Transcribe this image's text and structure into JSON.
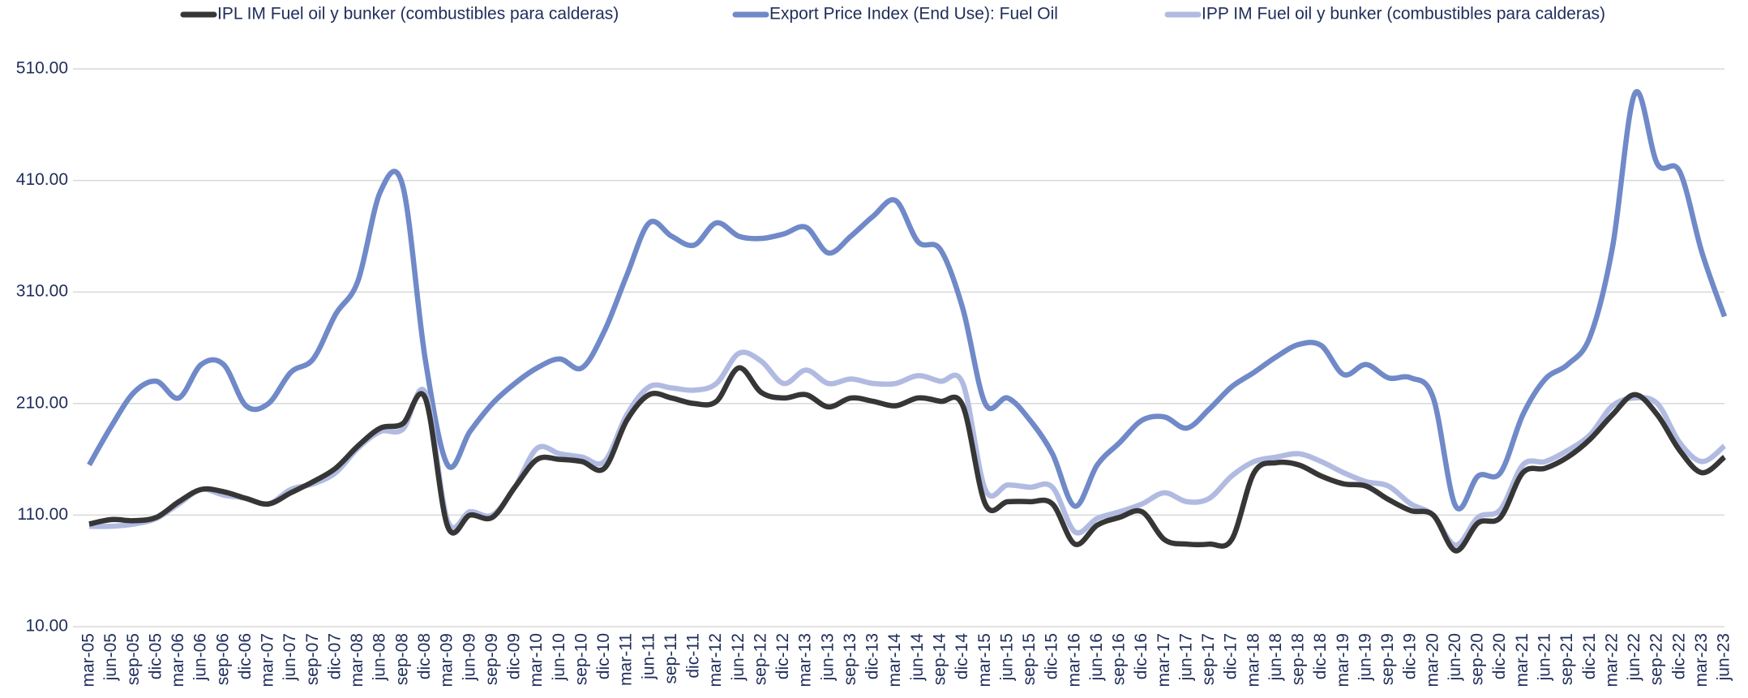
{
  "chart_data": {
    "type": "line",
    "categories": [
      "mar-05",
      "jun-05",
      "sep-05",
      "dic-05",
      "mar-06",
      "jun-06",
      "sep-06",
      "dic-06",
      "mar-07",
      "jun-07",
      "sep-07",
      "dic-07",
      "mar-08",
      "jun-08",
      "sep-08",
      "dic-08",
      "mar-09",
      "jun-09",
      "sep-09",
      "dic-09",
      "mar-10",
      "jun-10",
      "sep-10",
      "dic-10",
      "mar-11",
      "jun-11",
      "sep-11",
      "dic-11",
      "mar-12",
      "jun-12",
      "sep-12",
      "dic-12",
      "mar-13",
      "jun-13",
      "sep-13",
      "dic-13",
      "mar-14",
      "jun-14",
      "sep-14",
      "dic-14",
      "mar-15",
      "jun-15",
      "sep-15",
      "dic-15",
      "mar-16",
      "jun-16",
      "sep-16",
      "dic-16",
      "mar-17",
      "jun-17",
      "sep-17",
      "dic-17",
      "mar-18",
      "jun-18",
      "sep-18",
      "dic-18",
      "mar-19",
      "jun-19",
      "sep-19",
      "dic-19",
      "mar-20",
      "jun-20",
      "sep-20",
      "dic-20",
      "mar-21",
      "jun-21",
      "sep-21",
      "dic-21",
      "mar-22",
      "jun-22",
      "sep-22",
      "dic-22",
      "mar-23",
      "jun-23"
    ],
    "series": [
      {
        "name": "IPL IM Fuel oil y bunker (combustibles para calderas)",
        "color": "#363636",
        "values": [
          102,
          106,
          105,
          108,
          122,
          133,
          131,
          125,
          120,
          130,
          140,
          152,
          172,
          188,
          192,
          215,
          100,
          110,
          108,
          135,
          160,
          160,
          158,
          152,
          195,
          218,
          215,
          210,
          212,
          242,
          220,
          215,
          218,
          207,
          215,
          212,
          208,
          215,
          212,
          208,
          120,
          122,
          122,
          120,
          84,
          101,
          108,
          113,
          88,
          84,
          84,
          88,
          148,
          157,
          155,
          145,
          138,
          136,
          124,
          114,
          110,
          78,
          103,
          108,
          148,
          152,
          162,
          178,
          200,
          218,
          200,
          168,
          148,
          162
        ]
      },
      {
        "name": "Export Price Index (End Use): Fuel Oil",
        "color": "#7089c8",
        "values": [
          155,
          190,
          220,
          230,
          215,
          245,
          245,
          208,
          210,
          238,
          250,
          290,
          320,
          400,
          405,
          250,
          155,
          185,
          210,
          228,
          242,
          250,
          242,
          275,
          325,
          372,
          360,
          352,
          372,
          360,
          358,
          362,
          368,
          345,
          360,
          378,
          392,
          355,
          348,
          295,
          210,
          215,
          195,
          165,
          118,
          155,
          175,
          195,
          198,
          188,
          205,
          225,
          238,
          252,
          263,
          262,
          236,
          245,
          233,
          233,
          215,
          118,
          145,
          148,
          200,
          232,
          245,
          270,
          350,
          488,
          425,
          418,
          345,
          288
        ]
      },
      {
        "name": "IPP IM Fuel oil y bunker (combustibles para calderas)",
        "color": "#b1bbe1",
        "values": [
          100,
          100,
          102,
          107,
          120,
          133,
          128,
          125,
          120,
          133,
          138,
          148,
          170,
          185,
          187,
          220,
          105,
          113,
          110,
          135,
          170,
          165,
          162,
          158,
          200,
          225,
          224,
          222,
          228,
          255,
          248,
          228,
          240,
          228,
          232,
          228,
          228,
          235,
          230,
          228,
          133,
          137,
          135,
          135,
          95,
          107,
          113,
          120,
          130,
          122,
          125,
          145,
          158,
          162,
          165,
          158,
          148,
          140,
          136,
          120,
          110,
          83,
          108,
          115,
          155,
          158,
          168,
          182,
          208,
          215,
          210,
          175,
          158,
          172
        ]
      }
    ],
    "ylim": [
      10,
      510
    ],
    "yticks": [
      {
        "value": 10,
        "label": "10.00"
      },
      {
        "value": 110,
        "label": "110.00"
      },
      {
        "value": 210,
        "label": "210.00"
      },
      {
        "value": 310,
        "label": "310.00"
      },
      {
        "value": 410,
        "label": "410.00"
      },
      {
        "value": 510,
        "label": "510.00"
      }
    ],
    "grid": true,
    "legend": "top"
  }
}
